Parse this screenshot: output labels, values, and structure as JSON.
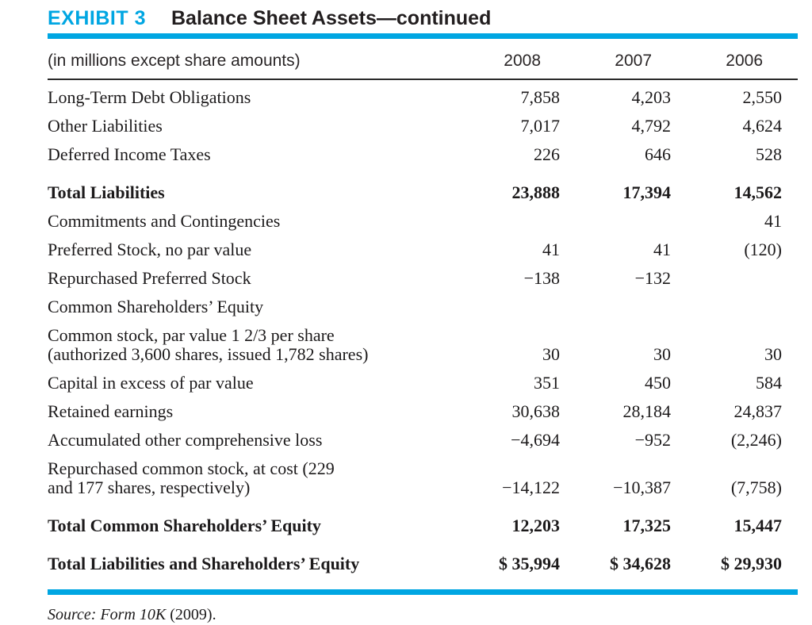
{
  "exhibit": {
    "label": "EXHIBIT 3",
    "title": "Balance Sheet Assets—continued"
  },
  "table": {
    "caption": "(in millions except share amounts)",
    "years": [
      "2008",
      "2007",
      "2006"
    ],
    "rows": [
      {
        "label": "Long-Term Debt Obligations",
        "values": [
          "7,858",
          "4,203",
          "2,550"
        ]
      },
      {
        "label": "Other Liabilities",
        "values": [
          "7,017",
          "4,792",
          "4,624"
        ]
      },
      {
        "label": "Deferred Income Taxes",
        "values": [
          "226",
          "646",
          "528"
        ]
      },
      {
        "label": "Total Liabilities",
        "values": [
          "23,888",
          "17,394",
          "14,562"
        ]
      },
      {
        "label": "Commitments and Contingencies",
        "values": [
          "",
          "",
          "41"
        ]
      },
      {
        "label": "Preferred Stock, no par value",
        "values": [
          "41",
          "41",
          "(120)"
        ]
      },
      {
        "label": "Repurchased Preferred Stock",
        "values": [
          "−138",
          "−132",
          ""
        ]
      },
      {
        "label": "Common Shareholders’ Equity",
        "values": [
          "",
          "",
          ""
        ]
      },
      {
        "label": "Common stock, par value 1 2/3 per share\n(authorized 3,600 shares, issued 1,782 shares)",
        "values": [
          "30",
          "30",
          "30"
        ]
      },
      {
        "label": "Capital in excess of par value",
        "values": [
          "351",
          "450",
          "584"
        ]
      },
      {
        "label": "Retained earnings",
        "values": [
          "30,638",
          "28,184",
          "24,837"
        ]
      },
      {
        "label": "Accumulated other comprehensive loss",
        "values": [
          "−4,694",
          "−952",
          "(2,246)"
        ]
      },
      {
        "label": "Repurchased common stock, at cost (229\nand 177 shares, respectively)",
        "values": [
          "−14,122",
          "−10,387",
          "(7,758)"
        ]
      },
      {
        "label": "Total Common Shareholders’ Equity",
        "values": [
          "12,203",
          "17,325",
          "15,447"
        ]
      },
      {
        "label": "Total Liabilities and Shareholders’ Equity",
        "values": [
          "$ 35,994",
          "$ 34,628",
          "$ 29,930"
        ]
      }
    ]
  },
  "source": {
    "citation": "Source: Form 10K",
    "suffix": " (2009)."
  },
  "colors": {
    "accent_cyan": "#00a6e2",
    "text_black": "#1c1a1b"
  }
}
